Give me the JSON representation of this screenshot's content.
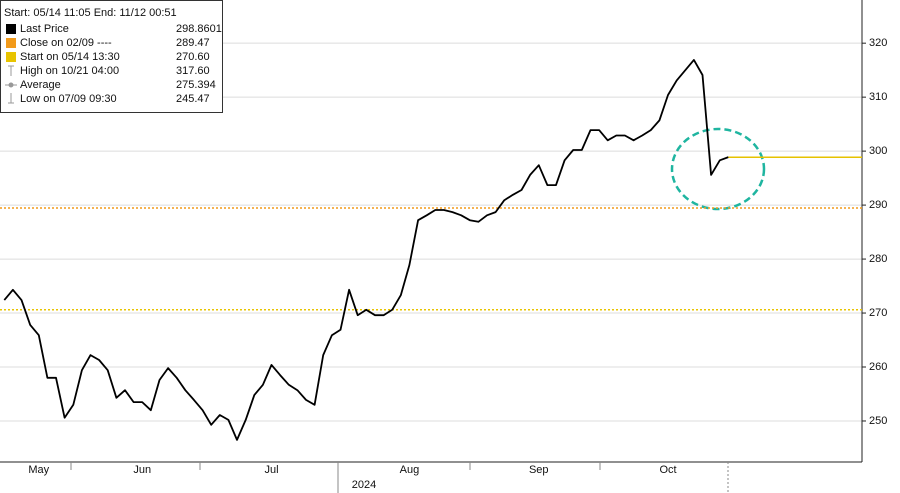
{
  "chart_data": {
    "type": "line",
    "subtitle": "Start: 05/14 11:05 End: 11/12 00:51",
    "xlabel": "2024",
    "categories": [
      null,
      null,
      null,
      null,
      "May",
      null,
      null,
      null,
      null,
      null,
      null,
      null,
      null,
      null,
      null,
      null,
      "Jun",
      null,
      null,
      null,
      null,
      null,
      null,
      null,
      null,
      null,
      null,
      null,
      null,
      null,
      null,
      "Jul",
      null,
      null,
      null,
      null,
      null,
      null,
      null,
      null,
      null,
      null,
      null,
      null,
      null,
      null,
      null,
      "Aug",
      null,
      null,
      null,
      null,
      null,
      null,
      null,
      null,
      null,
      null,
      null,
      null,
      null,
      null,
      "Sep",
      null,
      null,
      null,
      null,
      null,
      null,
      null,
      null,
      null,
      null,
      null,
      null,
      null,
      null,
      "Oct",
      null,
      null,
      null,
      null,
      null,
      null,
      null,
      null,
      null,
      null,
      null,
      null,
      null,
      null,
      null,
      null,
      null,
      null,
      null,
      null,
      null,
      null
    ],
    "series": [
      {
        "name": "Last Price",
        "color": "#000000",
        "values": [
          272.4,
          274.3,
          272.4,
          267.8,
          265.9,
          258,
          258,
          250.6,
          253,
          259.4,
          262.2,
          261.3,
          259.4,
          254.3,
          255.7,
          253.5,
          253.5,
          252,
          257.6,
          259.8,
          258,
          255.7,
          253.9,
          252,
          249.3,
          251.1,
          250.2,
          246.5,
          250.2,
          254.8,
          256.7,
          260.4,
          258.5,
          256.7,
          255.7,
          253.9,
          253,
          262.2,
          265.9,
          266.9,
          274.3,
          269.6,
          270.6,
          269.6,
          269.6,
          270.6,
          273.3,
          278.9,
          287.2,
          288.1,
          289.1,
          289.1,
          288.7,
          288.1,
          287.2,
          286.9,
          288.1,
          288.7,
          290.9,
          291.9,
          292.8,
          295.6,
          297.4,
          293.7,
          293.7,
          298.3,
          300.2,
          300.2,
          303.9,
          303.9,
          302,
          302.9,
          302.9,
          302,
          302.9,
          303.9,
          305.7,
          310.4,
          313.1,
          315,
          316.9,
          314.1,
          295.6,
          298.3,
          298.9,
          null,
          null,
          null,
          null,
          null,
          null,
          null,
          null,
          null,
          null,
          null,
          null,
          null,
          null,
          null
        ]
      }
    ],
    "legend_items": [
      {
        "name": "Last Price",
        "value": 298.8601,
        "value_label": "298.8601",
        "color": "#000000"
      },
      {
        "name": "Close on 02/09 ----",
        "value": 289.47,
        "value_label": "289.47",
        "color": "#f29a1a"
      },
      {
        "name": "Start on 05/14 13:30",
        "value": 270.6,
        "value_label": "270.60",
        "color": "#e8c400"
      },
      {
        "name": "High on 10/21 04:00",
        "value": 317.6,
        "value_label": "317.60"
      },
      {
        "name": "Average",
        "value": 275.394,
        "value_label": "275.394"
      },
      {
        "name": "Low on 07/09 09:30",
        "value": 245.47,
        "value_label": "245.47"
      }
    ],
    "last_line_color": "#e6c200",
    "ylim": [
      242.4,
      328
    ],
    "yticks": [
      250,
      260,
      270,
      280,
      290,
      300,
      310,
      320
    ],
    "grid": true
  }
}
